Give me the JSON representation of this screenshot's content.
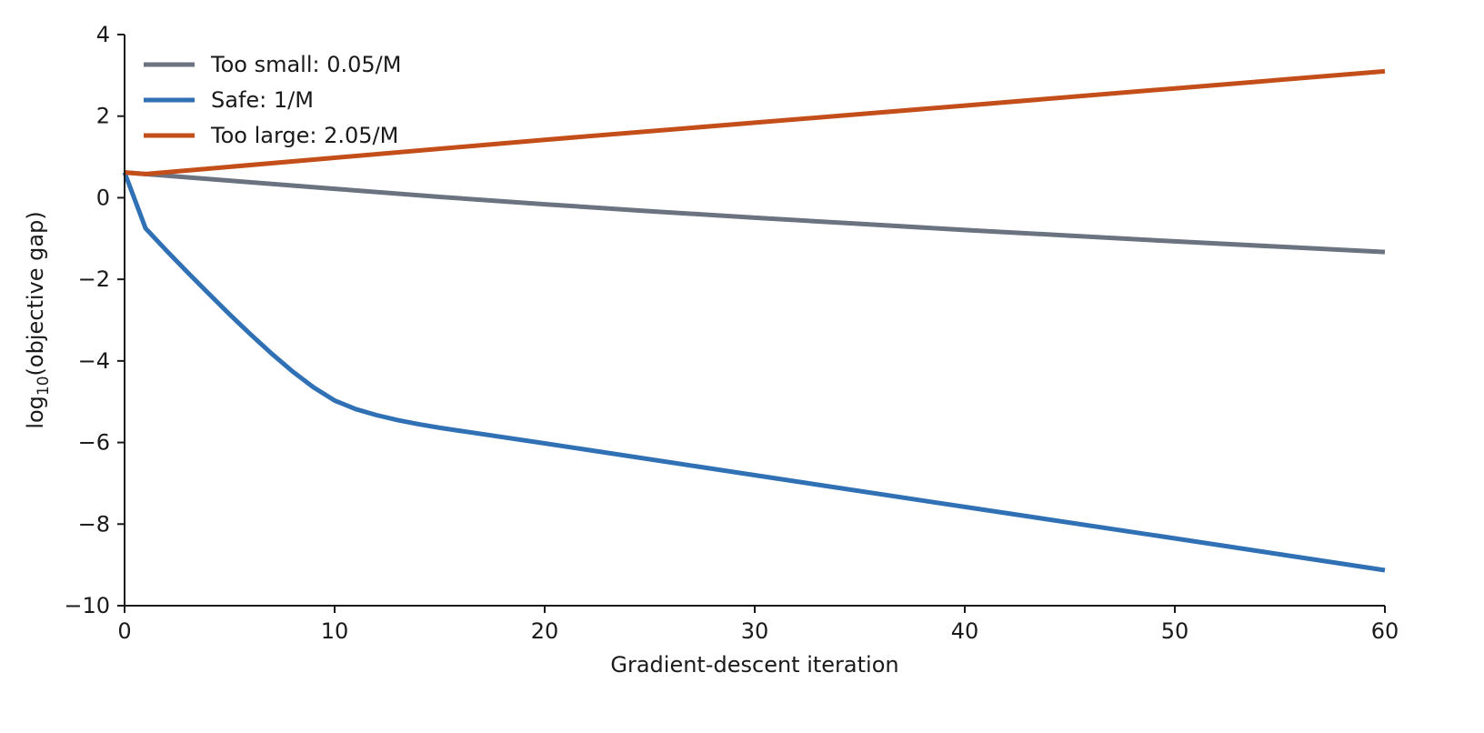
{
  "chart_data": {
    "type": "line",
    "title": "",
    "xlabel": "Gradient-descent iteration",
    "ylabel": {
      "prefix": "log",
      "subscript": "10",
      "suffix": "(objective gap)"
    },
    "xlim": [
      0,
      60
    ],
    "ylim": [
      -10,
      4
    ],
    "xticks": [
      0,
      10,
      20,
      30,
      40,
      50,
      60
    ],
    "yticks": [
      -10,
      -8,
      -6,
      -4,
      -2,
      0,
      2,
      4
    ],
    "ytick_labels": [
      "−10",
      "−8",
      "−6",
      "−4",
      "−2",
      "0",
      "2",
      "4"
    ],
    "grid": false,
    "legend_position": "top-left",
    "series": [
      {
        "name": "Too small: 0.05/M",
        "color": "#6b7280",
        "x": [
          0,
          1,
          5,
          10,
          15,
          20,
          25,
          30,
          35,
          40,
          45,
          50,
          55,
          60
        ],
        "y": [
          0.62,
          0.58,
          0.42,
          0.22,
          0.02,
          -0.16,
          -0.33,
          -0.49,
          -0.64,
          -0.79,
          -0.93,
          -1.07,
          -1.2,
          -1.33
        ]
      },
      {
        "name": "Safe: 1/M",
        "color": "#3070b4",
        "x": [
          0,
          1,
          2,
          3,
          4,
          5,
          6,
          7,
          8,
          9,
          10,
          11,
          12,
          13,
          14,
          15,
          20,
          30,
          40,
          50,
          60
        ],
        "y": [
          0.62,
          -0.75,
          -1.3,
          -1.83,
          -2.35,
          -2.86,
          -3.35,
          -3.82,
          -4.26,
          -4.65,
          -4.97,
          -5.18,
          -5.33,
          -5.45,
          -5.55,
          -5.64,
          -6.02,
          -6.8,
          -7.58,
          -8.35,
          -9.13
        ]
      },
      {
        "name": "Too large: 2.05/M",
        "color": "#c44e1a",
        "x": [
          0,
          1,
          10,
          20,
          30,
          40,
          50,
          60
        ],
        "y": [
          0.62,
          0.58,
          0.98,
          1.42,
          1.84,
          2.26,
          2.68,
          3.1
        ]
      }
    ]
  }
}
